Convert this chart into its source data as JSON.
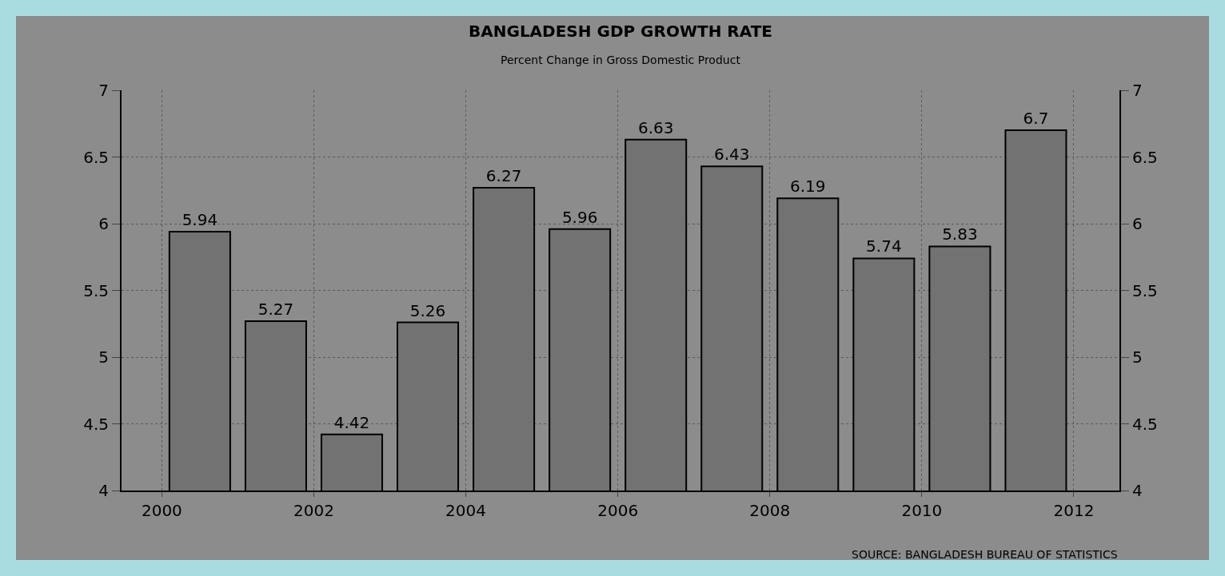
{
  "chart_data": {
    "type": "bar",
    "title": "BANGLADESH GDP GROWTH RATE",
    "subtitle": "Percent Change in Gross Domestic Product",
    "x": [
      2000.5,
      2001.5,
      2002.5,
      2003.5,
      2004.5,
      2005.5,
      2006.5,
      2007.5,
      2008.5,
      2009.5,
      2010.5,
      2011.5
    ],
    "values": [
      5.94,
      5.27,
      4.42,
      5.26,
      6.27,
      5.96,
      6.63,
      6.43,
      6.19,
      5.74,
      5.83,
      6.7
    ],
    "color": "#727272",
    "data_labels": true,
    "xlim": [
      1999.47,
      2012.6
    ],
    "xticks": [
      2000,
      2002,
      2004,
      2006,
      2008,
      2010,
      2012
    ],
    "ylim": [
      4,
      7
    ],
    "yticks": [
      4,
      4.5,
      5,
      5.5,
      6,
      6.5,
      7
    ],
    "y2lim": [
      4,
      7
    ],
    "y2ticks": [
      4,
      4.5,
      5,
      5.5,
      6,
      6.5,
      7
    ],
    "grid": true,
    "annotations": [
      "SOURCE: BANGLADESH BUREAU OF STATISTICS"
    ]
  }
}
